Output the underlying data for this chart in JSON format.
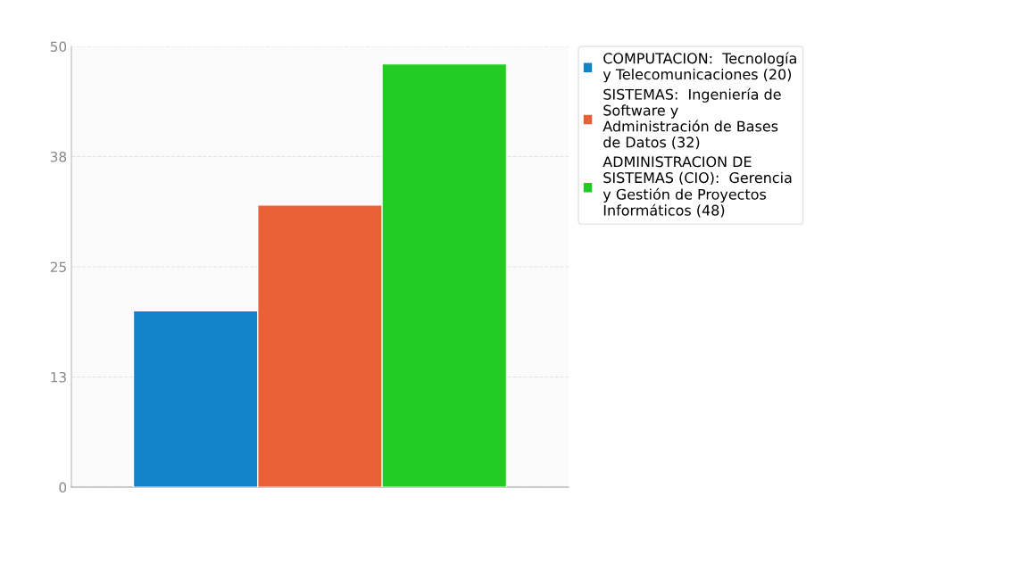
{
  "chart_data": {
    "type": "bar",
    "categories": [
      null
    ],
    "series": [
      {
        "name": "COMPUTACION:  Tecnología\ny Telecomunicaciones (20)",
        "color": "#1583c8",
        "values": [
          20
        ]
      },
      {
        "name": "SISTEMAS:  Ingeniería de\nSoftware y\nAdministración de Bases\nde Datos (32)",
        "color": "#e86035",
        "values": [
          32
        ]
      },
      {
        "name": "ADMINISTRACION DE\nSISTEMAS (CIO):  Gerencia\ny Gestión de Proyectos\nInformáticos (48)",
        "color": "#22cc22",
        "values": [
          48
        ]
      }
    ],
    "ylim": [
      0,
      50
    ],
    "yticks": [
      0,
      {
        "value": 12.5,
        "label": "13"
      },
      25,
      {
        "value": 37.5,
        "label": "38"
      },
      50
    ],
    "grid": true,
    "legend": "top right"
  }
}
